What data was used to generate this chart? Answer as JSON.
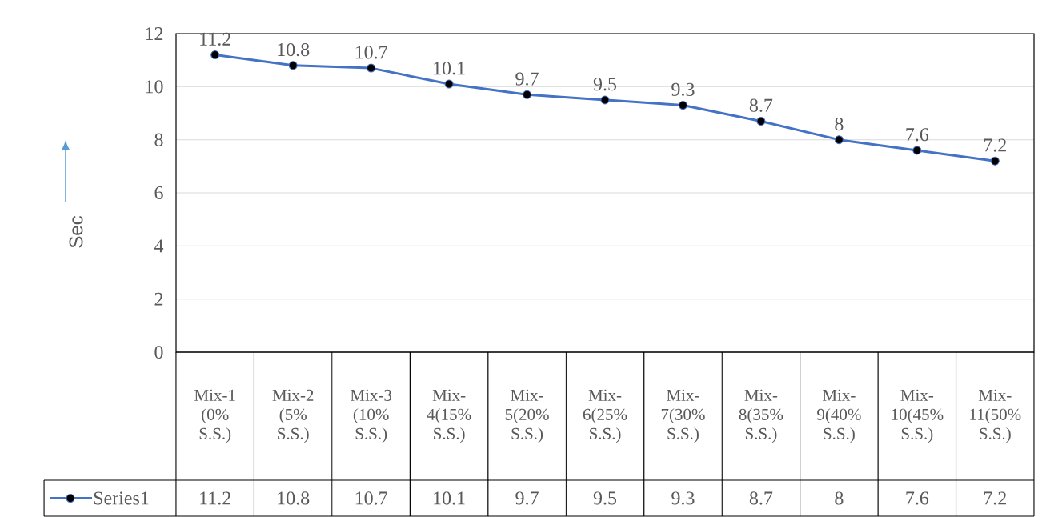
{
  "chart_data": {
    "type": "line",
    "categories": [
      "Mix-1 (0% S.S.)",
      "Mix-2 (5% S.S.)",
      "Mix-3 (10% S.S.)",
      "Mix-4(15% S.S.)",
      "Mix-5(20% S.S.)",
      "Mix-6(25% S.S.)",
      "Mix-7(30% S.S.)",
      "Mix-8(35% S.S.)",
      "Mix-9(40% S.S.)",
      "Mix-10(45% S.S.)",
      "Mix-11(50% S.S.)"
    ],
    "series": [
      {
        "name": "Series1",
        "color": "#4472c4",
        "values": [
          11.2,
          10.8,
          10.7,
          10.1,
          9.7,
          9.5,
          9.3,
          8.7,
          8,
          7.6,
          7.2
        ],
        "value_labels": [
          "11.2",
          "10.8",
          "10.7",
          "10.1",
          "9.7",
          "9.5",
          "9.3",
          "8.7",
          "8",
          "7.6",
          "7.2"
        ]
      }
    ],
    "ylabel": "Sec",
    "ylim": [
      0,
      12
    ],
    "yticks": [
      0,
      2,
      4,
      6,
      8,
      10,
      12
    ],
    "grid": "y",
    "marker": "circle",
    "line_style": "solid",
    "data_labels": true,
    "legend": "bottom left"
  }
}
